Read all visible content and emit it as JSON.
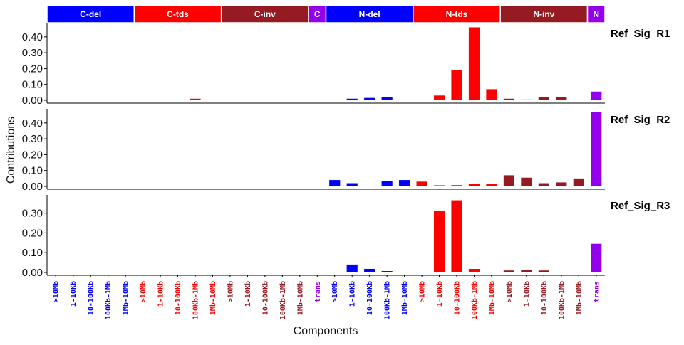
{
  "chart_data": {
    "type": "bar",
    "xlabel": "Components",
    "ylabel": "Contributions",
    "groups": [
      {
        "label": "C-del",
        "color": "#0000ff",
        "components": [
          ">10Mb",
          "1-10Kb",
          "10-100Kb",
          "100Kb-1Mb",
          "1Mb-10Mb"
        ]
      },
      {
        "label": "C-tds",
        "color": "#ff0000",
        "components": [
          ">10Mb",
          "1-10Kb",
          "10-100Kb",
          "100Kb-1Mb",
          "1Mb-10Mb"
        ]
      },
      {
        "label": "C-inv",
        "color": "#961a22",
        "components": [
          ">10Mb",
          "1-10Kb",
          "10-100Kb",
          "100Kb-1Mb",
          "1Mb-10Mb"
        ]
      },
      {
        "label": "C",
        "color": "#9400ee",
        "components": [
          "trans"
        ]
      },
      {
        "label": "N-del",
        "color": "#0000ff",
        "components": [
          ">10Mb",
          "1-10Kb",
          "10-100Kb",
          "100Kb-1Mb",
          "1Mb-10Mb"
        ]
      },
      {
        "label": "N-tds",
        "color": "#ff0000",
        "components": [
          ">10Mb",
          "1-10Kb",
          "10-100Kb",
          "100Kb-1Mb",
          "1Mb-10Mb"
        ]
      },
      {
        "label": "N-inv",
        "color": "#961a22",
        "components": [
          ">10Mb",
          "1-10Kb",
          "10-100Kb",
          "100Kb-1Mb",
          "1Mb-10Mb"
        ]
      },
      {
        "label": "N",
        "color": "#9400ee",
        "components": [
          "trans"
        ]
      }
    ],
    "series": [
      {
        "name": "Ref_Sig_R1",
        "ylim": [
          0,
          0.48
        ],
        "yticks": [
          "0.00",
          "0.10",
          "0.20",
          "0.30",
          "0.40"
        ],
        "values": [
          0,
          0,
          0,
          0,
          0,
          0,
          0,
          0,
          0.01,
          0,
          0,
          0,
          0,
          0,
          0,
          0,
          0,
          0.01,
          0.015,
          0.02,
          0,
          0,
          0.03,
          0.19,
          0.46,
          0.07,
          0.01,
          0.005,
          0.02,
          0.02,
          0,
          0.055
        ]
      },
      {
        "name": "Ref_Sig_R2",
        "ylim": [
          0,
          0.48
        ],
        "yticks": [
          "0.00",
          "0.10",
          "0.20",
          "0.30",
          "0.40"
        ],
        "values": [
          0,
          0,
          0,
          0,
          0,
          0,
          0,
          0,
          0,
          0,
          0,
          0,
          0,
          0,
          0,
          0,
          0.04,
          0.02,
          0.003,
          0.035,
          0.04,
          0.03,
          0.007,
          0.008,
          0.015,
          0.015,
          0.07,
          0.055,
          0.02,
          0.025,
          0.05,
          0.47
        ]
      },
      {
        "name": "Ref_Sig_R3",
        "ylim": [
          0,
          0.385
        ],
        "yticks": [
          "0.00",
          "0.10",
          "0.20",
          "0.30"
        ],
        "values": [
          0,
          0,
          0,
          0,
          0,
          0,
          0,
          0.002,
          0,
          0,
          0,
          0,
          0,
          0,
          0,
          0,
          0,
          0.04,
          0.018,
          0.007,
          0,
          0.003,
          0.31,
          0.365,
          0.018,
          0,
          0.01,
          0.014,
          0.01,
          0,
          0,
          0.145
        ]
      }
    ]
  }
}
